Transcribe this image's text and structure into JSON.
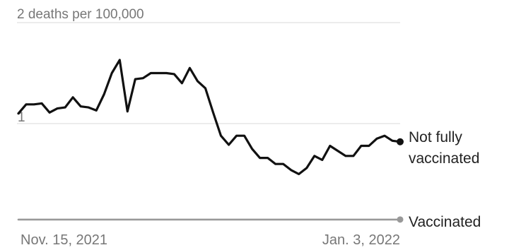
{
  "chart_data": {
    "type": "line",
    "y_tick_labels": [
      "2 deaths per 100,000",
      "1"
    ],
    "y_ticks": [
      2,
      1
    ],
    "ylim": [
      0,
      2
    ],
    "x_tick_labels": [
      "Nov. 15, 2021",
      "Jan. 3, 2022"
    ],
    "grid": true,
    "series": [
      {
        "name": "Not fully vaccinated",
        "color": "#111111",
        "values": [
          1.1,
          1.19,
          1.19,
          1.2,
          1.11,
          1.15,
          1.16,
          1.26,
          1.17,
          1.16,
          1.13,
          1.29,
          1.5,
          1.63,
          1.12,
          1.44,
          1.45,
          1.5,
          1.5,
          1.5,
          1.49,
          1.4,
          1.55,
          1.42,
          1.35,
          1.11,
          0.88,
          0.79,
          0.88,
          0.88,
          0.75,
          0.66,
          0.66,
          0.6,
          0.6,
          0.54,
          0.5,
          0.56,
          0.68,
          0.64,
          0.78,
          0.73,
          0.68,
          0.68,
          0.78,
          0.78,
          0.85,
          0.88,
          0.83,
          0.82
        ]
      },
      {
        "name": "Vaccinated",
        "color": "#999999",
        "values": [
          0.05,
          0.05,
          0.05,
          0.05,
          0.05,
          0.05,
          0.05,
          0.05,
          0.05,
          0.05,
          0.05,
          0.05,
          0.05,
          0.05,
          0.05,
          0.05,
          0.05,
          0.05,
          0.05,
          0.05,
          0.05,
          0.05,
          0.05,
          0.05,
          0.05,
          0.05,
          0.05,
          0.05,
          0.05,
          0.05,
          0.05,
          0.05,
          0.05,
          0.05,
          0.05,
          0.05,
          0.05,
          0.05,
          0.05,
          0.05,
          0.05,
          0.05,
          0.05,
          0.05,
          0.05,
          0.05,
          0.05,
          0.05,
          0.05,
          0.05
        ]
      }
    ],
    "series_labels": [
      [
        "Not fully",
        "vaccinated"
      ],
      [
        "Vaccinated"
      ]
    ]
  }
}
